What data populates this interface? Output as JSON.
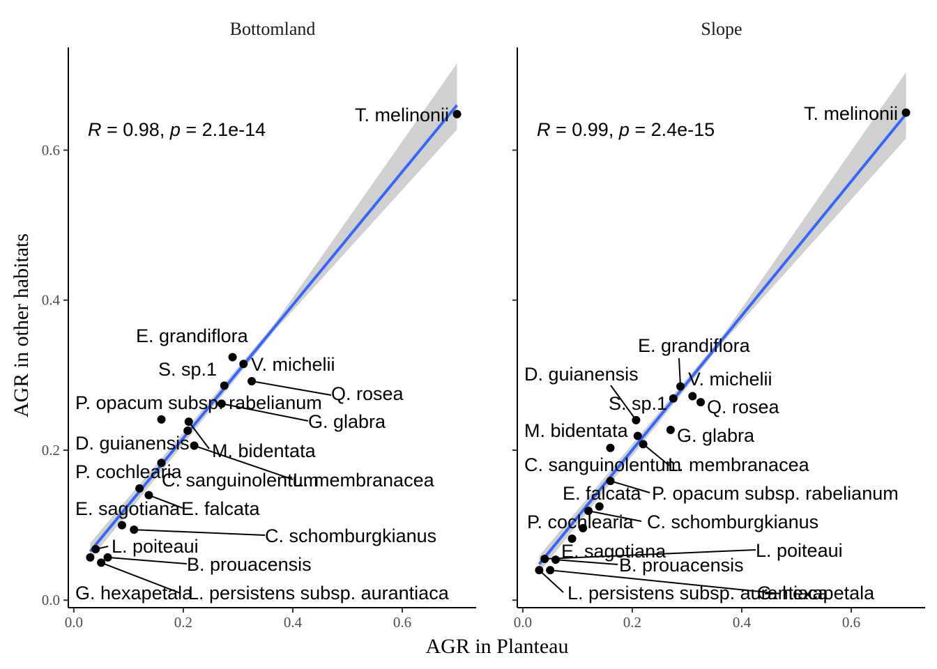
{
  "chart_data": {
    "type": "scatter",
    "xlabel": "AGR in Planteau",
    "ylabel": "AGR in other habitats",
    "xlim": [
      -0.01,
      0.735
    ],
    "ylim": [
      -0.01,
      0.737
    ],
    "x_ticks": [
      "0.0",
      "0.2",
      "0.4",
      "0.6"
    ],
    "y_ticks": [
      "0.0",
      "0.2",
      "0.4",
      "0.6"
    ],
    "colors": {
      "fit_line": "#3366ff",
      "ribbon": "#c8c8c8",
      "points": "#000000"
    },
    "panels": [
      {
        "strip": "Bottomland",
        "stats": {
          "r_symbol": "R",
          "r_text": " = 0.98, ",
          "p_symbol": "p",
          "p_text": " = 2.1e-14"
        },
        "fit": {
          "x": [
            0.03,
            0.7
          ],
          "y": [
            0.065,
            0.66
          ]
        },
        "points": [
          {
            "label": "T. melinonii",
            "x": 0.7,
            "y": 0.648
          },
          {
            "label": "E. grandiflora",
            "x": 0.29,
            "y": 0.324
          },
          {
            "label": "V. michelii",
            "x": 0.31,
            "y": 0.315
          },
          {
            "label": "S. sp.1",
            "x": 0.275,
            "y": 0.286
          },
          {
            "label": "Q. rosea",
            "x": 0.325,
            "y": 0.292
          },
          {
            "label": "P. opacum subsp. rabelianum",
            "x": 0.16,
            "y": 0.241
          },
          {
            "label": "G. glabra",
            "x": 0.27,
            "y": 0.262
          },
          {
            "label": "M. bidentata",
            "x": 0.21,
            "y": 0.238
          },
          {
            "label": "D. guianensis",
            "x": 0.208,
            "y": 0.226
          },
          {
            "label": "L. membranacea",
            "x": 0.22,
            "y": 0.206
          },
          {
            "label": "C. sanguinolentum",
            "x": 0.16,
            "y": 0.183
          },
          {
            "label": "P. cochlearia",
            "x": 0.12,
            "y": 0.149
          },
          {
            "label": "E. falcata",
            "x": 0.137,
            "y": 0.14
          },
          {
            "label": "E. sagotiana",
            "x": 0.088,
            "y": 0.1
          },
          {
            "label": "C. schomburgkianus",
            "x": 0.11,
            "y": 0.094
          },
          {
            "label": "L. poiteaui",
            "x": 0.04,
            "y": 0.068
          },
          {
            "label": "B. prouacensis",
            "x": 0.062,
            "y": 0.057
          },
          {
            "label": "G. hexapetala",
            "x": 0.03,
            "y": 0.057
          },
          {
            "label": "L. persistens subsp. aurantiaca",
            "x": 0.05,
            "y": 0.05
          }
        ]
      },
      {
        "strip": "Slope",
        "stats": {
          "r_symbol": "R",
          "r_text": " = 0.99, ",
          "p_symbol": "p",
          "p_text": " = 2.4e-15"
        },
        "fit": {
          "x": [
            0.03,
            0.7
          ],
          "y": [
            0.048,
            0.648
          ]
        },
        "points": [
          {
            "label": "T. melinonii",
            "x": 0.7,
            "y": 0.65
          },
          {
            "label": "E. grandiflora",
            "x": 0.288,
            "y": 0.285
          },
          {
            "label": "V. michelii",
            "x": 0.31,
            "y": 0.272
          },
          {
            "label": "D. guianensis",
            "x": 0.207,
            "y": 0.24
          },
          {
            "label": "S. sp.1",
            "x": 0.275,
            "y": 0.269
          },
          {
            "label": "Q. rosea",
            "x": 0.325,
            "y": 0.264
          },
          {
            "label": "G. glabra",
            "x": 0.27,
            "y": 0.227
          },
          {
            "label": "M. bidentata",
            "x": 0.21,
            "y": 0.219
          },
          {
            "label": "L. membranacea",
            "x": 0.22,
            "y": 0.208
          },
          {
            "label": "C. sanguinolentum",
            "x": 0.16,
            "y": 0.203
          },
          {
            "label": "P. opacum subsp. rabelianum",
            "x": 0.16,
            "y": 0.159
          },
          {
            "label": "E. falcata",
            "x": 0.14,
            "y": 0.125
          },
          {
            "label": "C. schomburgkianus",
            "x": 0.12,
            "y": 0.119
          },
          {
            "label": "P. cochlearia",
            "x": 0.11,
            "y": 0.096
          },
          {
            "label": "E. sagotiana",
            "x": 0.09,
            "y": 0.082
          },
          {
            "label": "L. poiteaui",
            "x": 0.04,
            "y": 0.055
          },
          {
            "label": "B. prouacensis",
            "x": 0.06,
            "y": 0.054
          },
          {
            "label": "L. persistens subsp. aurantiaca",
            "x": 0.03,
            "y": 0.04
          },
          {
            "label": "G. hexapetala",
            "x": 0.05,
            "y": 0.04
          }
        ]
      }
    ]
  }
}
